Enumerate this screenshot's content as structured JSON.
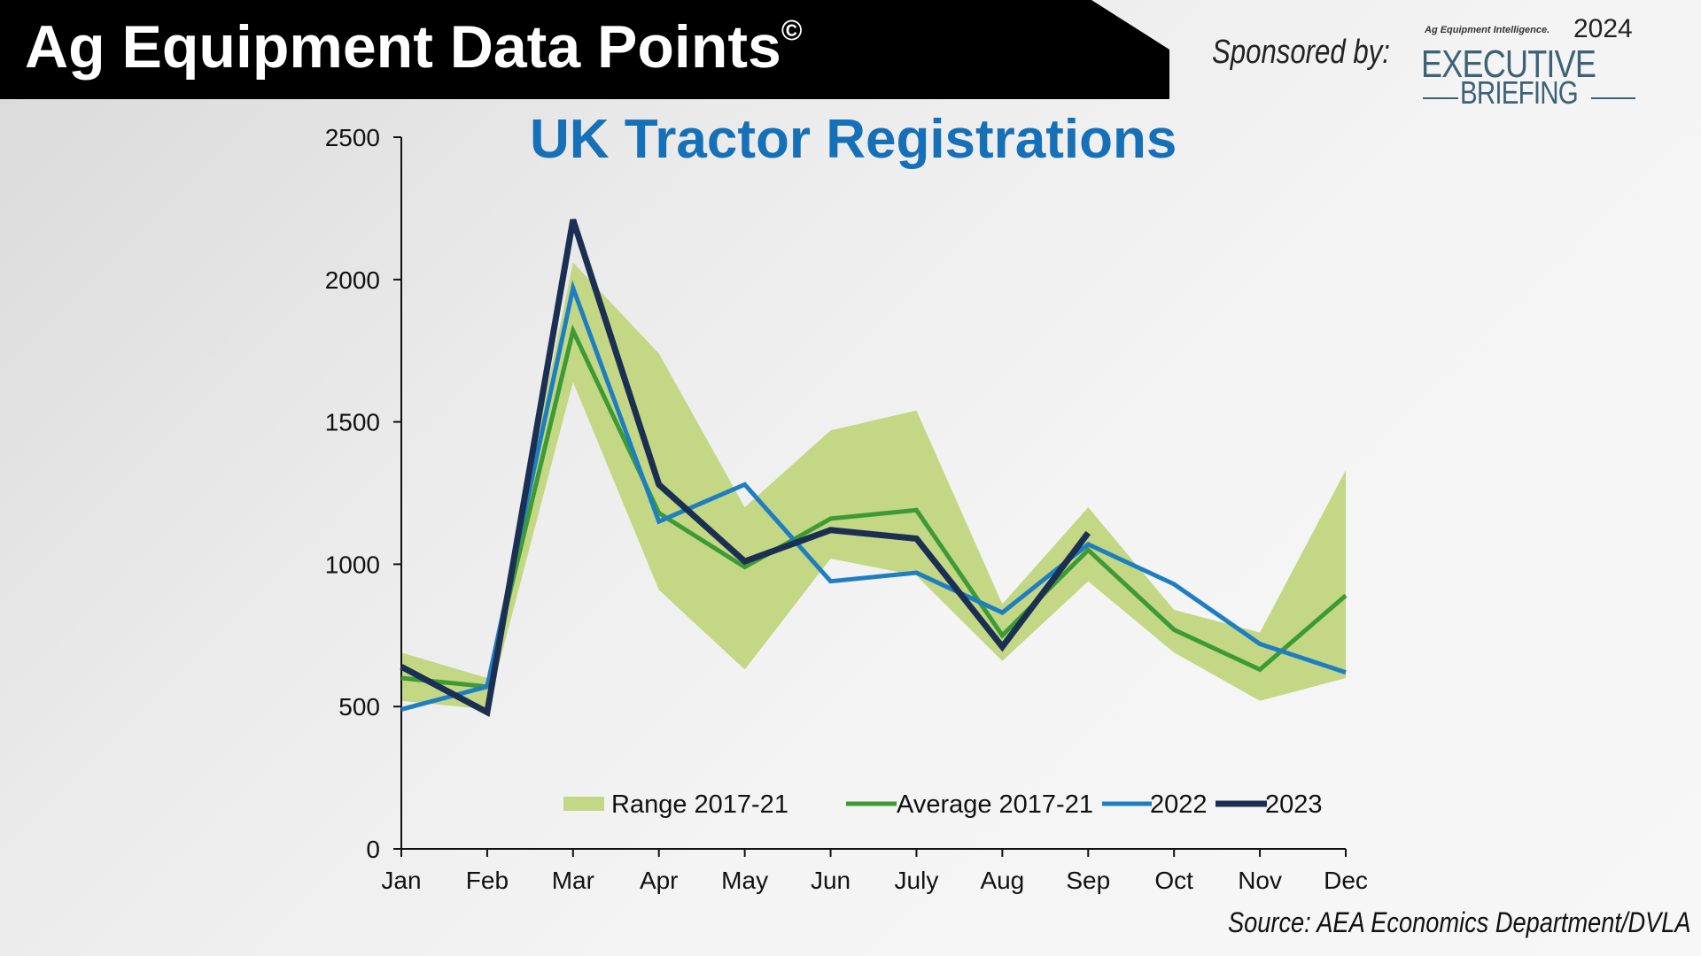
{
  "header": {
    "title": "Ag Equipment Data Points",
    "title_mark": "©",
    "sponsor_label": "Sponsored by:",
    "logo": {
      "small_text": "Ag Equipment Intelligence.",
      "year": "2024",
      "line1": "EXECUTIVE",
      "line2": "BRIEFING"
    }
  },
  "source": "Source: AEA Economics Department/DVLA",
  "colors": {
    "range": "#c3d784",
    "average": "#3d9a35",
    "y2022": "#1f7ec2",
    "y2023": "#1b2f52",
    "title": "#1570b8"
  },
  "chart_data": {
    "type": "line",
    "title": "UK Tractor Registrations",
    "xlabel": "",
    "ylabel": "",
    "categories": [
      "Jan",
      "Feb",
      "Mar",
      "Apr",
      "May",
      "Jun",
      "July",
      "Aug",
      "Sep",
      "Oct",
      "Nov",
      "Dec"
    ],
    "ylim": [
      0,
      2500
    ],
    "yticks": [
      0,
      500,
      1000,
      1500,
      2000,
      2500
    ],
    "grid": false,
    "legend_position": "bottom",
    "range": {
      "name": "Range 2017-21",
      "min": [
        520,
        490,
        1640,
        910,
        630,
        1020,
        960,
        660,
        940,
        690,
        520,
        600
      ],
      "max": [
        690,
        600,
        2060,
        1740,
        1200,
        1470,
        1540,
        860,
        1200,
        840,
        760,
        1330
      ]
    },
    "series": [
      {
        "name": "Average 2017-21",
        "values": [
          600,
          570,
          1820,
          1180,
          990,
          1160,
          1190,
          750,
          1050,
          770,
          630,
          890
        ]
      },
      {
        "name": "2022",
        "values": [
          490,
          570,
          1970,
          1150,
          1280,
          940,
          970,
          830,
          1070,
          930,
          720,
          620
        ]
      },
      {
        "name": "2023",
        "values": [
          640,
          480,
          2210,
          1280,
          1010,
          1120,
          1090,
          710,
          1110,
          null,
          null,
          null
        ]
      }
    ]
  }
}
